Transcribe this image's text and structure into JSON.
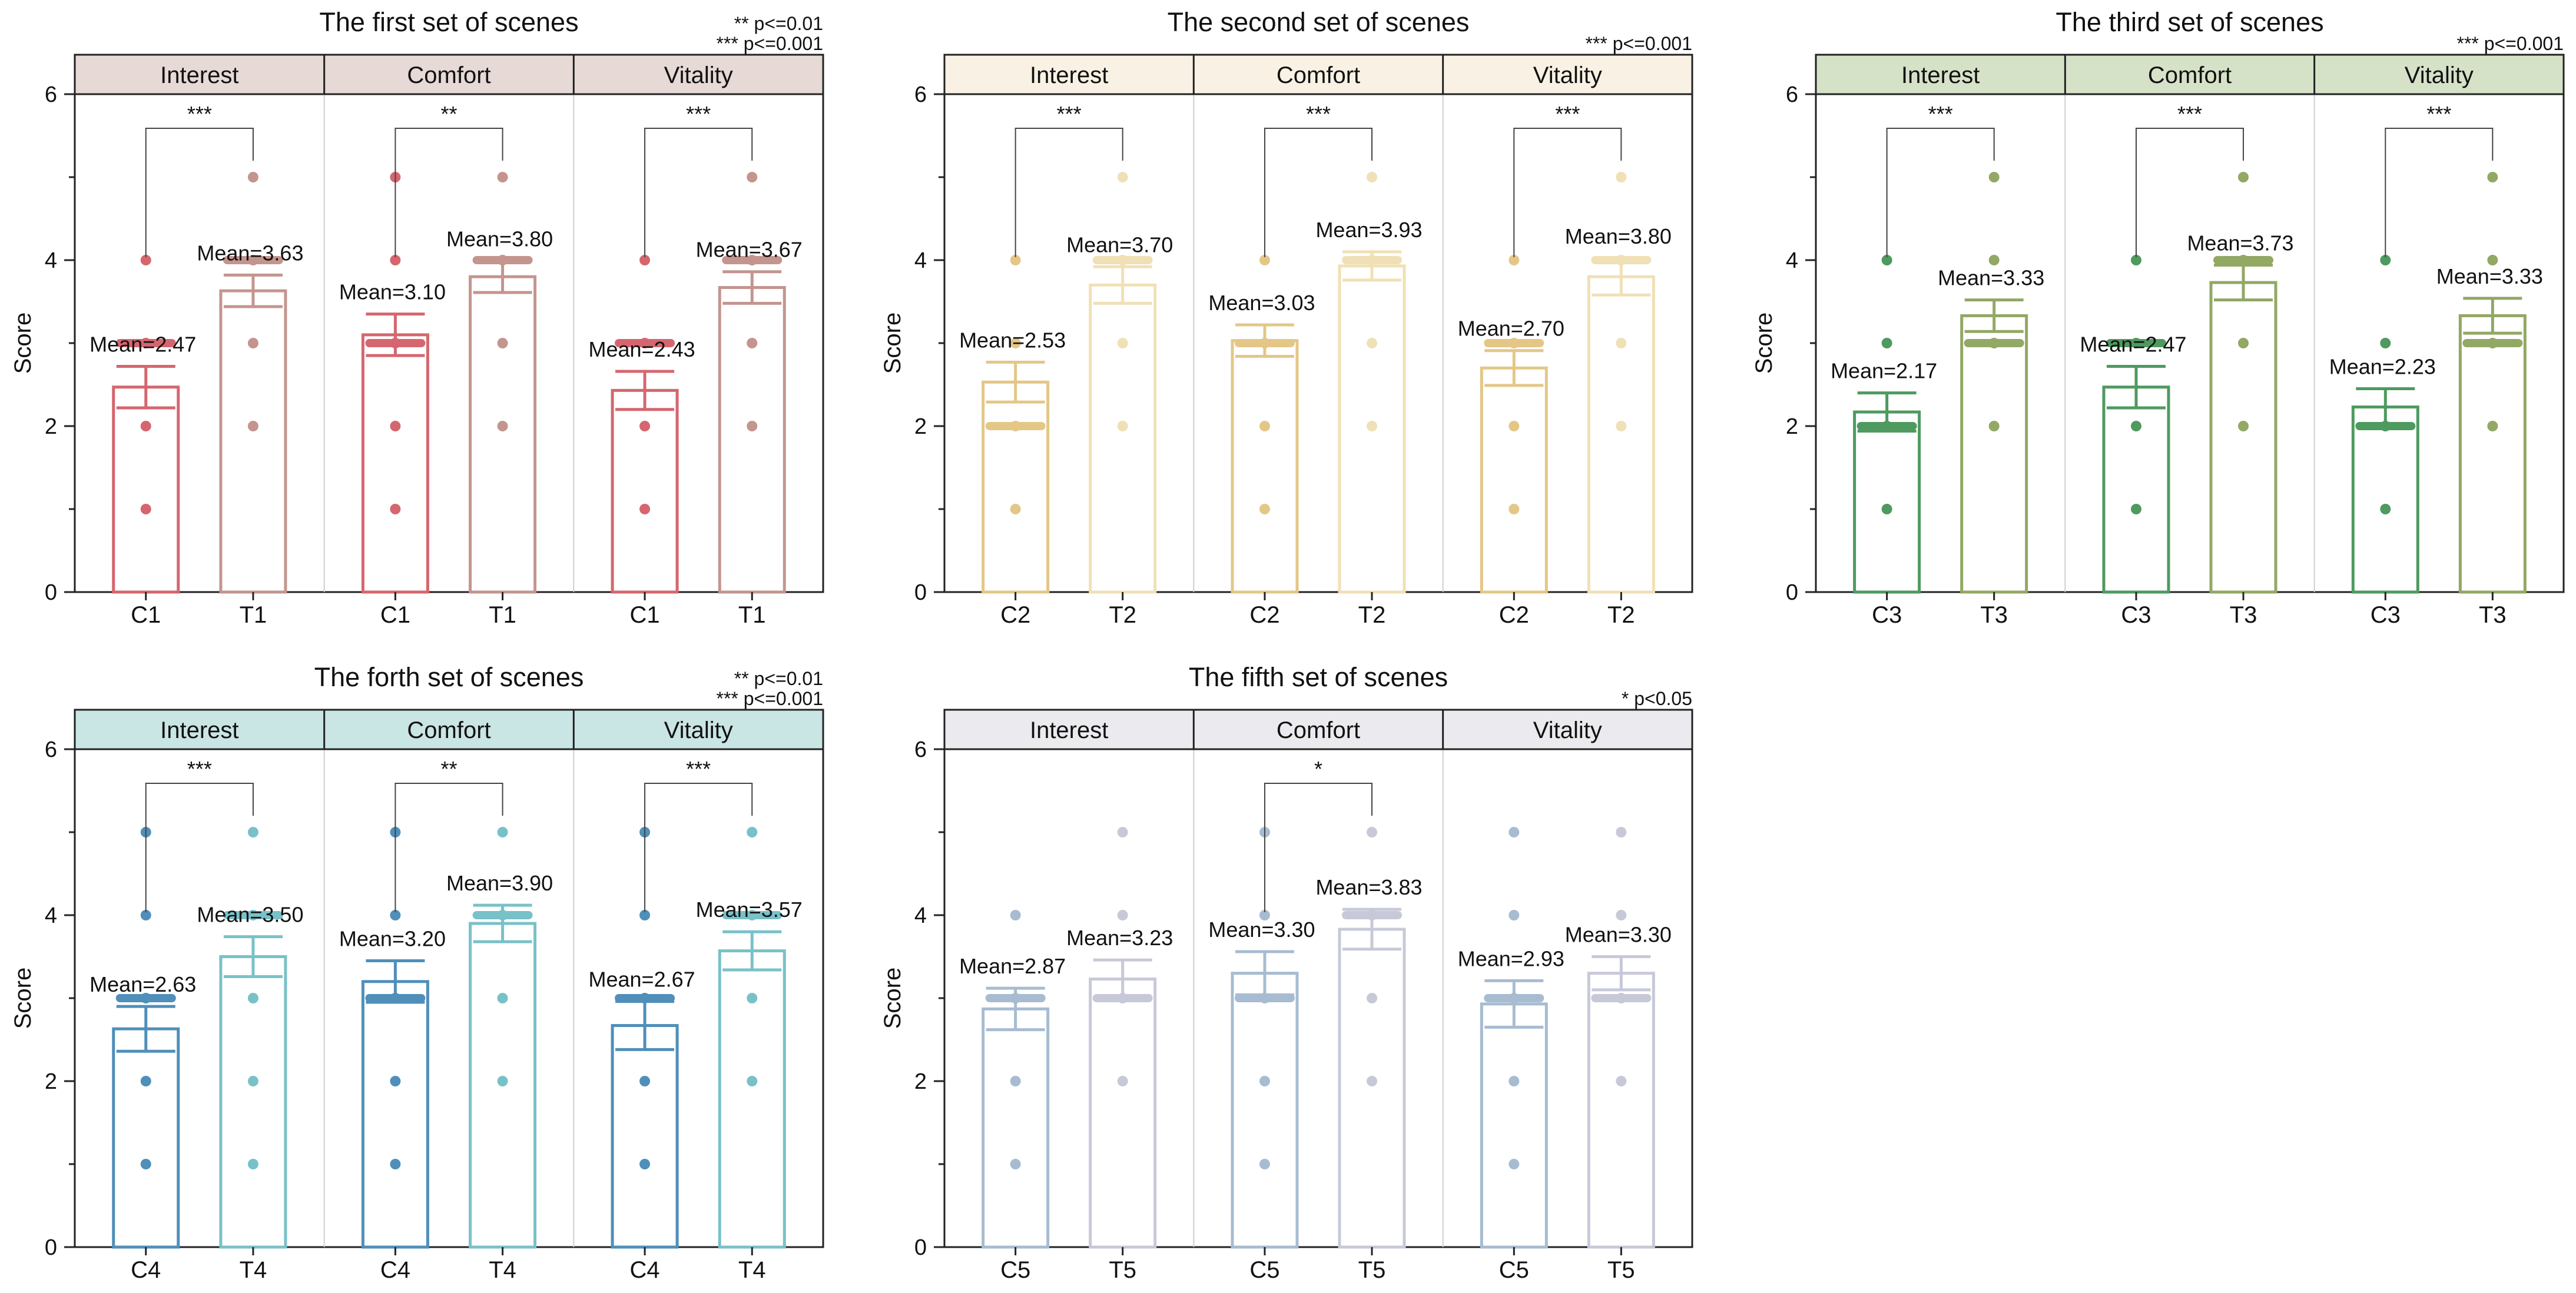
{
  "chart_data": [
    {
      "type": "bar",
      "title": "The first set of scenes",
      "notes": [
        "** p<=0.01",
        "*** p<=0.001"
      ],
      "ylabel": "Score",
      "ylim": [
        0,
        6
      ],
      "yticks": [
        "0",
        "2",
        "4",
        "6"
      ],
      "facets": [
        "Interest",
        "Comfort",
        "Vitality"
      ],
      "categories": [
        "C1",
        "T1"
      ],
      "strip_color": "#e6d9d6",
      "colors": [
        "#d5666f",
        "#c3958e"
      ],
      "means": [
        [
          2.47,
          3.63
        ],
        [
          3.1,
          3.8
        ],
        [
          2.43,
          3.67
        ]
      ],
      "mean_labels": [
        [
          "Mean=2.47",
          "Mean=3.63"
        ],
        [
          "Mean=3.10",
          "Mean=3.80"
        ],
        [
          "Mean=2.43",
          "Mean=3.67"
        ]
      ],
      "errors": [
        [
          0.25,
          0.19
        ],
        [
          0.25,
          0.19
        ],
        [
          0.23,
          0.19
        ]
      ],
      "points": [
        [
          [
            1,
            2,
            3,
            4
          ],
          [
            2,
            3,
            4,
            5
          ]
        ],
        [
          [
            1,
            2,
            3,
            4,
            5
          ],
          [
            2,
            3,
            4,
            5
          ]
        ],
        [
          [
            1,
            2,
            3,
            4
          ],
          [
            2,
            3,
            4,
            5
          ]
        ]
      ],
      "dense": [
        [
          3,
          4
        ],
        [
          3,
          4
        ],
        [
          3,
          4
        ]
      ],
      "significance": [
        "***",
        "**",
        "***"
      ]
    },
    {
      "type": "bar",
      "title": "The second set of scenes",
      "notes": [
        "*** p<=0.001"
      ],
      "ylabel": "Score",
      "ylim": [
        0,
        6
      ],
      "yticks": [
        "0",
        "2",
        "4",
        "6"
      ],
      "facets": [
        "Interest",
        "Comfort",
        "Vitality"
      ],
      "categories": [
        "C2",
        "T2"
      ],
      "strip_color": "#f9f2e4",
      "colors": [
        "#e4c787",
        "#f0e0b5"
      ],
      "means": [
        [
          2.53,
          3.7
        ],
        [
          3.03,
          3.93
        ],
        [
          2.7,
          3.8
        ]
      ],
      "mean_labels": [
        [
          "Mean=2.53",
          "Mean=3.70"
        ],
        [
          "Mean=3.03",
          "Mean=3.93"
        ],
        [
          "Mean=2.70",
          "Mean=3.80"
        ]
      ],
      "errors": [
        [
          0.24,
          0.22
        ],
        [
          0.19,
          0.17
        ],
        [
          0.21,
          0.22
        ]
      ],
      "points": [
        [
          [
            1,
            2,
            3,
            4
          ],
          [
            2,
            3,
            4,
            5
          ]
        ],
        [
          [
            1,
            2,
            3,
            4
          ],
          [
            2,
            3,
            4,
            5
          ]
        ],
        [
          [
            1,
            2,
            3,
            4
          ],
          [
            2,
            3,
            4,
            5
          ]
        ]
      ],
      "dense": [
        [
          2,
          4
        ],
        [
          3,
          4
        ],
        [
          3,
          4
        ]
      ],
      "significance": [
        "***",
        "***",
        "***"
      ]
    },
    {
      "type": "bar",
      "title": "The third set of scenes",
      "notes": [
        "*** p<=0.001"
      ],
      "ylabel": "Score",
      "ylim": [
        0,
        6
      ],
      "yticks": [
        "0",
        "2",
        "4",
        "6"
      ],
      "facets": [
        "Interest",
        "Comfort",
        "Vitality"
      ],
      "categories": [
        "C3",
        "T3"
      ],
      "strip_color": "#d6e2c8",
      "colors": [
        "#4e9a5f",
        "#92a864"
      ],
      "means": [
        [
          2.17,
          3.33
        ],
        [
          2.47,
          3.73
        ],
        [
          2.23,
          3.33
        ]
      ],
      "mean_labels": [
        [
          "Mean=2.17",
          "Mean=3.33"
        ],
        [
          "Mean=2.47",
          "Mean=3.73"
        ],
        [
          "Mean=2.23",
          "Mean=3.33"
        ]
      ],
      "errors": [
        [
          0.23,
          0.19
        ],
        [
          0.25,
          0.21
        ],
        [
          0.22,
          0.21
        ]
      ],
      "points": [
        [
          [
            1,
            2,
            3,
            4
          ],
          [
            2,
            3,
            4,
            5
          ]
        ],
        [
          [
            1,
            2,
            3,
            4
          ],
          [
            2,
            3,
            4,
            5
          ]
        ],
        [
          [
            1,
            2,
            3,
            4
          ],
          [
            2,
            3,
            4,
            5
          ]
        ]
      ],
      "dense": [
        [
          2,
          3
        ],
        [
          3,
          4
        ],
        [
          2,
          3
        ]
      ],
      "significance": [
        "***",
        "***",
        "***"
      ]
    },
    {
      "type": "bar",
      "title": "The forth set of scenes",
      "notes": [
        "** p<=0.01",
        "*** p<=0.001"
      ],
      "ylabel": "Score",
      "ylim": [
        0,
        6
      ],
      "yticks": [
        "0",
        "2",
        "4",
        "6"
      ],
      "facets": [
        "Interest",
        "Comfort",
        "Vitality"
      ],
      "categories": [
        "C4",
        "T4"
      ],
      "strip_color": "#c9e5e4",
      "colors": [
        "#4f8fba",
        "#79c1c8"
      ],
      "means": [
        [
          2.63,
          3.5
        ],
        [
          3.2,
          3.9
        ],
        [
          2.67,
          3.57
        ]
      ],
      "mean_labels": [
        [
          "Mean=2.63",
          "Mean=3.50"
        ],
        [
          "Mean=3.20",
          "Mean=3.90"
        ],
        [
          "Mean=2.67",
          "Mean=3.57"
        ]
      ],
      "errors": [
        [
          0.27,
          0.24
        ],
        [
          0.25,
          0.22
        ],
        [
          0.29,
          0.23
        ]
      ],
      "points": [
        [
          [
            1,
            2,
            3,
            4,
            5
          ],
          [
            1,
            2,
            3,
            4,
            5
          ]
        ],
        [
          [
            1,
            2,
            3,
            4,
            5
          ],
          [
            2,
            3,
            4,
            5
          ]
        ],
        [
          [
            1,
            2,
            3,
            4,
            5
          ],
          [
            2,
            3,
            4,
            5
          ]
        ]
      ],
      "dense": [
        [
          3,
          4
        ],
        [
          3,
          4
        ],
        [
          3,
          4
        ]
      ],
      "significance": [
        "***",
        "**",
        "***"
      ]
    },
    {
      "type": "bar",
      "title": "The fifth set of scenes",
      "notes": [
        "* p<0.05"
      ],
      "ylabel": "Score",
      "ylim": [
        0,
        6
      ],
      "yticks": [
        "0",
        "2",
        "4",
        "6"
      ],
      "facets": [
        "Interest",
        "Comfort",
        "Vitality"
      ],
      "categories": [
        "C5",
        "T5"
      ],
      "strip_color": "#ebeaee",
      "colors": [
        "#a7bcd1",
        "#c7c9d8"
      ],
      "means": [
        [
          2.87,
          3.23
        ],
        [
          3.3,
          3.83
        ],
        [
          2.93,
          3.3
        ]
      ],
      "mean_labels": [
        [
          "Mean=2.87",
          "Mean=3.23"
        ],
        [
          "Mean=3.30",
          "Mean=3.83"
        ],
        [
          "Mean=2.93",
          "Mean=3.30"
        ]
      ],
      "errors": [
        [
          0.25,
          0.23
        ],
        [
          0.26,
          0.24
        ],
        [
          0.28,
          0.2
        ]
      ],
      "points": [
        [
          [
            1,
            2,
            3,
            4
          ],
          [
            2,
            3,
            4,
            5
          ]
        ],
        [
          [
            1,
            2,
            3,
            4,
            5
          ],
          [
            2,
            3,
            4,
            5
          ]
        ],
        [
          [
            1,
            2,
            3,
            4,
            5
          ],
          [
            2,
            3,
            4,
            5
          ]
        ]
      ],
      "dense": [
        [
          3,
          3
        ],
        [
          3,
          4
        ],
        [
          3,
          3
        ]
      ],
      "significance": [
        "",
        "*",
        ""
      ]
    }
  ]
}
